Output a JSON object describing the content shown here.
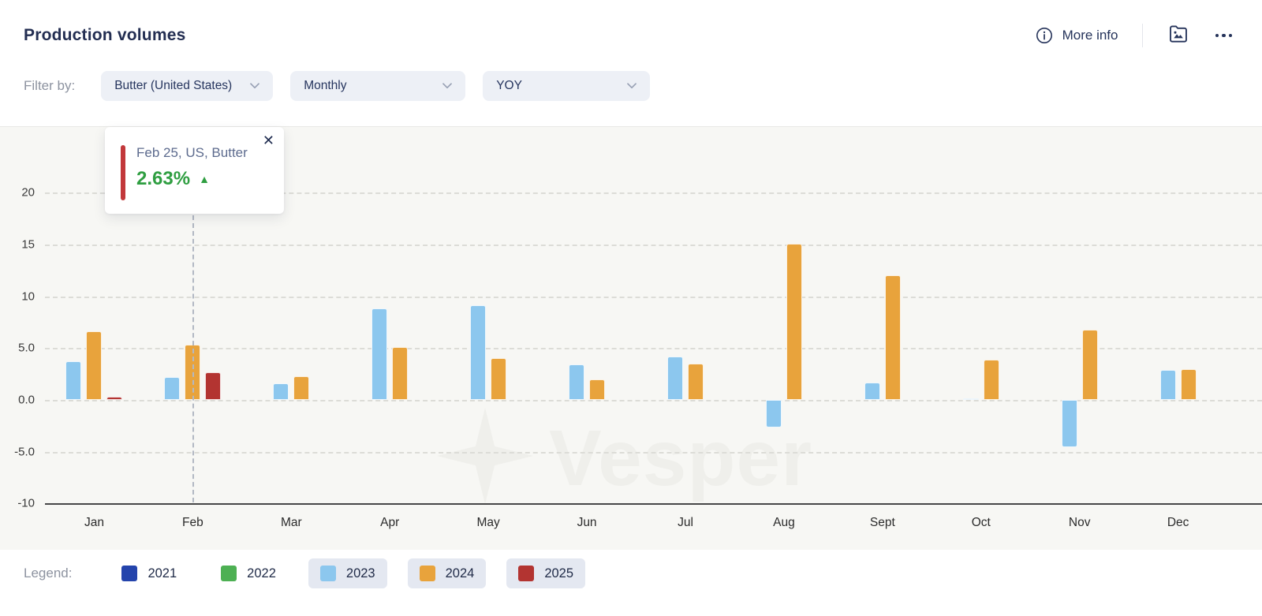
{
  "header": {
    "title": "Production volumes",
    "more_info_label": "More info"
  },
  "filters": {
    "label": "Filter by:",
    "dropdowns": [
      {
        "value": "Butter (United States)"
      },
      {
        "value": "Monthly"
      },
      {
        "value": "YOY"
      }
    ]
  },
  "tooltip": {
    "title": "Feb 25, US, Butter",
    "value": "2.63%",
    "direction": "up"
  },
  "watermark": {
    "text": "Vesper"
  },
  "legend": {
    "label": "Legend:",
    "items": [
      {
        "label": "2021",
        "color": "#2444ac",
        "active": false
      },
      {
        "label": "2022",
        "color": "#4db053",
        "active": false
      },
      {
        "label": "2023",
        "color": "#8cc7ee",
        "active": true
      },
      {
        "label": "2024",
        "color": "#e8a33c",
        "active": true
      },
      {
        "label": "2025",
        "color": "#b33431",
        "active": true
      }
    ]
  },
  "chart_data": {
    "type": "bar",
    "title": "Production volumes, Butter (United States), Monthly, YOY %",
    "categories": [
      "Jan",
      "Feb",
      "Mar",
      "Apr",
      "May",
      "Jun",
      "Jul",
      "Aug",
      "Sept",
      "Oct",
      "Nov",
      "Dec"
    ],
    "series": [
      {
        "name": "2023",
        "color": "#8cc7ee",
        "values": [
          3.7,
          2.2,
          1.6,
          8.8,
          9.1,
          3.4,
          4.2,
          -2.7,
          1.7,
          0.1,
          -4.6,
          2.9
        ]
      },
      {
        "name": "2024",
        "color": "#e8a33c",
        "values": [
          6.6,
          5.3,
          2.3,
          5.1,
          4.0,
          2.0,
          3.5,
          15.1,
          12.0,
          3.9,
          6.8,
          3.0
        ]
      },
      {
        "name": "2025",
        "color": "#b33431",
        "values": [
          0.3,
          2.63,
          null,
          null,
          null,
          null,
          null,
          null,
          null,
          null,
          null,
          null
        ]
      }
    ],
    "yticks": [
      20,
      15,
      10,
      5,
      0,
      -5,
      -10
    ],
    "ytick_labels": [
      "20",
      "15",
      "10",
      "5.0",
      "0.0",
      "-5.0",
      "-10"
    ],
    "ylim": [
      -10,
      26.3
    ],
    "grid": "dashed-horizontal",
    "legend_position": "bottom",
    "selected_category": "Feb"
  }
}
